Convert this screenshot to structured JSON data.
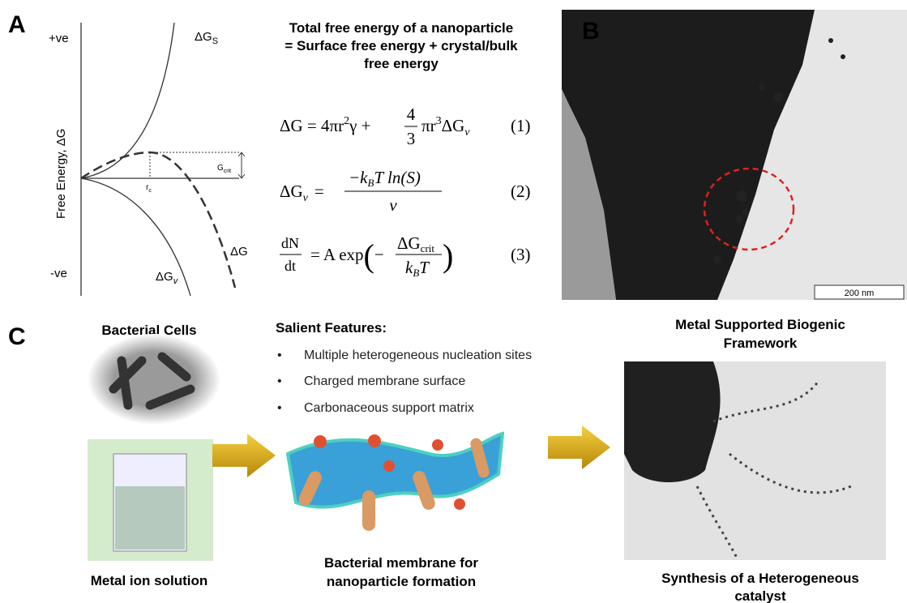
{
  "panel_a": {
    "label": "A",
    "y_axis_label": "Free Energy, ΔG",
    "positive": "+ve",
    "negative": "-ve",
    "surface_curve": {
      "main": "ΔG",
      "sub": "S"
    },
    "total_curve": "ΔG",
    "volume_curve": {
      "main": "ΔG",
      "sub": "v"
    },
    "critical_radius": {
      "main": "r",
      "sub": "c"
    },
    "critical_energy": {
      "main": "G",
      "sub": "crit"
    }
  },
  "equations": {
    "title": [
      "Total free energy of a nanoparticle",
      "= Surface free energy + crystal/bulk",
      "free energy"
    ],
    "items": [
      {
        "parts": [
          "ΔG = 4πr",
          "2",
          "γ +",
          "4",
          "3",
          "πr",
          "3",
          "ΔG",
          "v"
        ],
        "number": "(1)"
      },
      {
        "parts": [
          "ΔG",
          "v",
          "=",
          "−k",
          "B",
          "T  ln(S)",
          "v"
        ],
        "number": "(2)"
      },
      {
        "parts": [
          "dN",
          "dt",
          "= A exp",
          "(",
          "−",
          "ΔG",
          "crit",
          "k",
          "B",
          "T",
          ")"
        ],
        "number": "(3)"
      }
    ]
  },
  "panel_b": {
    "label": "B",
    "scale_bar": "200 nm"
  },
  "panel_c": {
    "label": "C",
    "bacterial_cells": "Bacterial Cells",
    "metal_solution": "Metal ion solution",
    "features_title": "Salient Features:",
    "features": [
      "Multiple heterogeneous nucleation sites",
      "Charged membrane surface",
      "Carbonaceous support matrix"
    ],
    "membrane_caption": [
      "Bacterial membrane for",
      "nanoparticle formation"
    ],
    "framework_title": [
      "Metal Supported Biogenic",
      "Framework"
    ],
    "catalyst_caption": [
      "Synthesis of a Heterogeneous",
      "catalyst"
    ]
  }
}
